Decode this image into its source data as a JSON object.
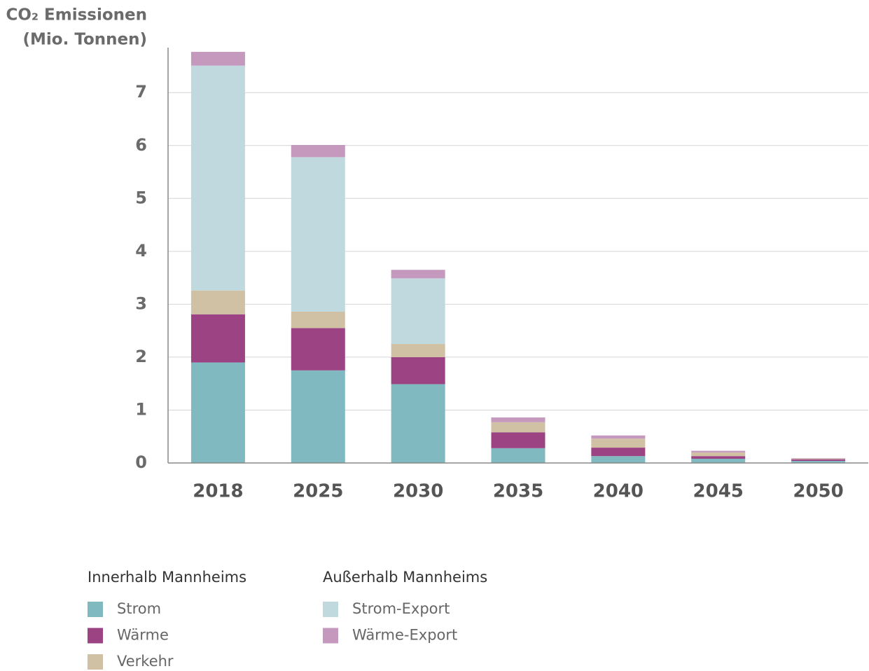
{
  "chart_data": {
    "type": "bar",
    "stacked": true,
    "y_label": [
      "CO₂ Emissionen",
      "(Mio. Tonnen)"
    ],
    "categories": [
      "2018",
      "2025",
      "2030",
      "2035",
      "2040",
      "2045",
      "2050"
    ],
    "series": [
      {
        "name": "Strom",
        "color": "#80b9c0",
        "values": [
          1.9,
          1.75,
          1.49,
          0.28,
          0.13,
          0.08,
          0.04
        ]
      },
      {
        "name": "Wärme",
        "color": "#9b4383",
        "values": [
          0.91,
          0.8,
          0.51,
          0.3,
          0.16,
          0.05,
          0.03
        ]
      },
      {
        "name": "Verkehr",
        "color": "#d0c1a4",
        "values": [
          0.45,
          0.31,
          0.25,
          0.19,
          0.17,
          0.07,
          0.01
        ]
      },
      {
        "name": "Strom-Export",
        "color": "#c0d9de",
        "values": [
          4.25,
          2.92,
          1.24,
          0,
          0,
          0,
          0
        ]
      },
      {
        "name": "Wärme-Export",
        "color": "#c599bd",
        "values": [
          0.26,
          0.23,
          0.16,
          0.09,
          0.06,
          0.03,
          0.01
        ]
      }
    ],
    "legend_groups": [
      "Innerhalb Mannheims",
      "Außerhalb Mannheims"
    ],
    "ylim": [
      0,
      7.85
    ],
    "yticks": [
      0,
      1,
      2,
      3,
      4,
      5,
      6,
      7
    ],
    "grid": true
  }
}
